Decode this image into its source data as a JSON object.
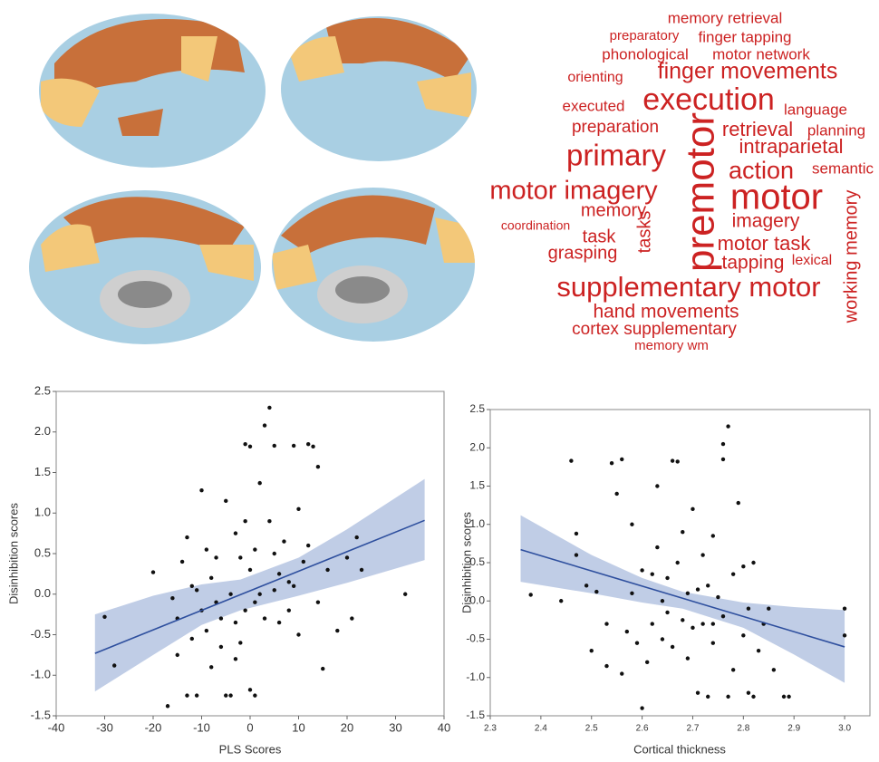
{
  "word_cloud": {
    "color": "#cc2222",
    "words": [
      "memory retrieval",
      "preparatory",
      "finger tapping",
      "phonological",
      "motor network",
      "orienting",
      "finger movements",
      "executed",
      "execution",
      "language",
      "preparation",
      "retrieval",
      "planning",
      "primary",
      "intraparietal",
      "action",
      "semantic",
      "motor imagery",
      "premotor",
      "motor",
      "memory",
      "imagery",
      "working memory",
      "coordination",
      "task",
      "tasks",
      "grasping",
      "motor task",
      "tapping",
      "lexical",
      "supplementary motor",
      "hand movements",
      "cortex supplementary",
      "memory wm"
    ]
  },
  "chart_data": [
    {
      "type": "scatter",
      "x_label": "PLS Scores",
      "y_label": "Disinhibition scores",
      "point_color": "#111111",
      "line_color": "#2e4f9e",
      "band_color": "#b9c8e3",
      "xlim": [
        -40,
        40
      ],
      "xticks": [
        -40,
        -30,
        -20,
        -10,
        0,
        10,
        20,
        30,
        40
      ],
      "ylim": [
        -1.5,
        2.5
      ],
      "yticks": [
        {
          "value": -1.5,
          "label": "-1.5"
        },
        {
          "value": -1,
          "label": "-1.0"
        },
        {
          "value": -0.5,
          "label": "-0.5"
        },
        {
          "value": 0,
          "label": "0.0"
        },
        {
          "value": 0.5,
          "label": "0.5"
        },
        {
          "value": 1,
          "label": "1.0"
        },
        {
          "value": 1.5,
          "label": "1.5"
        },
        {
          "value": 2,
          "label": "2.0"
        },
        {
          "value": 2.5,
          "label": "2.5"
        }
      ],
      "x": [
        -30,
        -28,
        -20,
        -17,
        -16,
        -15,
        -15,
        -14,
        -13,
        -13,
        -12,
        -11,
        -11,
        -10,
        -10,
        -9,
        -9,
        -8,
        -8,
        -7,
        -7,
        -6,
        -6,
        -5,
        -5,
        -4,
        -4,
        -3,
        -3,
        -2,
        -2,
        -1,
        -1,
        -1,
        0,
        0,
        0,
        1,
        1,
        1,
        2,
        2,
        3,
        3,
        4,
        4,
        5,
        5,
        6,
        6,
        7,
        8,
        9,
        9,
        10,
        10,
        11,
        12,
        12,
        13,
        14,
        14,
        15,
        16,
        18,
        20,
        21,
        22,
        23,
        32,
        5,
        -3,
        8,
        -12
      ],
      "y": [
        -0.28,
        -0.88,
        0.27,
        -1.38,
        -0.05,
        -0.3,
        -0.75,
        0.4,
        -1.25,
        0.7,
        -0.55,
        -1.25,
        0.05,
        1.28,
        -0.2,
        0.55,
        -0.45,
        0.2,
        -0.9,
        -0.1,
        0.45,
        -0.3,
        -0.65,
        1.15,
        -1.25,
        -1.25,
        0,
        0.75,
        -0.35,
        0.45,
        -0.6,
        0.9,
        -0.2,
        1.85,
        1.82,
        -1.18,
        0.3,
        -0.1,
        -1.25,
        0.55,
        0,
        1.37,
        2.08,
        -0.3,
        2.3,
        0.9,
        1.83,
        0.05,
        -0.35,
        0.25,
        0.65,
        -0.2,
        1.83,
        0.1,
        1.05,
        -0.5,
        0.4,
        1.85,
        0.6,
        1.82,
        1.57,
        -0.1,
        -0.92,
        0.3,
        -0.45,
        0.45,
        -0.3,
        0.7,
        0.3,
        0,
        0.5,
        -0.8,
        0.15,
        0.1
      ],
      "fit": {
        "x": [
          -32,
          36
        ],
        "y": [
          -0.73,
          0.91
        ]
      },
      "band": {
        "x": [
          -32,
          -20,
          -10,
          -2,
          10,
          20,
          36
        ],
        "upper": [
          -0.25,
          -0.02,
          0.12,
          0.18,
          0.45,
          0.8,
          1.42
        ],
        "lower": [
          -1.2,
          -0.75,
          -0.38,
          -0.2,
          -0.02,
          0.14,
          0.42
        ]
      }
    },
    {
      "type": "scatter",
      "x_label": "Cortical thickness",
      "y_label": "Disinhibition scores",
      "point_color": "#111111",
      "line_color": "#2e4f9e",
      "band_color": "#b9c8e3",
      "xlim": [
        2.3,
        3.05
      ],
      "xticks": [
        2.3,
        2.4,
        2.5,
        2.6,
        2.7,
        2.8,
        2.9,
        {
          "value": 3,
          "label": "3.0"
        }
      ],
      "ylim": [
        -1.5,
        2.5
      ],
      "yticks": [
        {
          "value": -1.5,
          "label": "-1.5"
        },
        {
          "value": -1,
          "label": "-1.0"
        },
        {
          "value": -0.5,
          "label": "-0.5"
        },
        {
          "value": 0,
          "label": "0.0"
        },
        {
          "value": 0.5,
          "label": "0.5"
        },
        {
          "value": 1,
          "label": "1.0"
        },
        {
          "value": 1.5,
          "label": "1.5"
        },
        {
          "value": 2,
          "label": "2.0"
        },
        {
          "value": 2.5,
          "label": "2.5"
        }
      ],
      "x": [
        2.38,
        2.44,
        2.46,
        2.47,
        2.47,
        2.49,
        2.5,
        2.51,
        2.53,
        2.53,
        2.54,
        2.55,
        2.56,
        2.56,
        2.57,
        2.58,
        2.58,
        2.59,
        2.6,
        2.6,
        2.61,
        2.62,
        2.63,
        2.63,
        2.64,
        2.64,
        2.65,
        2.65,
        2.66,
        2.66,
        2.67,
        2.67,
        2.68,
        2.68,
        2.69,
        2.69,
        2.7,
        2.7,
        2.71,
        2.71,
        2.72,
        2.72,
        2.73,
        2.73,
        2.74,
        2.74,
        2.75,
        2.76,
        2.76,
        2.76,
        2.77,
        2.77,
        2.78,
        2.78,
        2.79,
        2.8,
        2.8,
        2.81,
        2.81,
        2.82,
        2.82,
        2.83,
        2.84,
        2.85,
        2.86,
        2.88,
        2.89,
        3,
        3,
        2.62,
        2.74
      ],
      "y": [
        0.08,
        0,
        1.83,
        0.6,
        0.88,
        0.2,
        -0.65,
        0.12,
        -0.3,
        -0.85,
        1.8,
        1.4,
        -0.95,
        1.85,
        -0.4,
        0.1,
        1,
        -0.55,
        -1.4,
        0.4,
        -0.8,
        -0.3,
        1.5,
        0.7,
        0,
        -0.5,
        0.3,
        -0.15,
        1.83,
        -0.6,
        1.82,
        0.5,
        -0.25,
        0.9,
        -0.75,
        0.1,
        1.2,
        -0.35,
        0.15,
        -1.2,
        -0.3,
        0.6,
        -1.25,
        0.2,
        0.85,
        -0.55,
        0.05,
        2.05,
        1.85,
        -0.2,
        2.28,
        -1.25,
        0.35,
        -0.9,
        1.28,
        0.45,
        -0.45,
        -0.1,
        -1.2,
        0.5,
        -1.25,
        -0.65,
        -0.3,
        -0.1,
        -0.9,
        -1.25,
        -1.25,
        -0.1,
        -0.45,
        0.35,
        -0.3
      ],
      "fit": {
        "x": [
          2.36,
          3
        ],
        "y": [
          0.67,
          -0.6
        ]
      },
      "band": {
        "x": [
          2.36,
          2.5,
          2.6,
          2.68,
          2.8,
          2.9,
          3
        ],
        "upper": [
          1.12,
          0.6,
          0.3,
          0.12,
          -0.02,
          -0.08,
          -0.12
        ],
        "lower": [
          0.25,
          0.1,
          -0.02,
          -0.1,
          -0.35,
          -0.7,
          -1.07
        ]
      }
    }
  ]
}
